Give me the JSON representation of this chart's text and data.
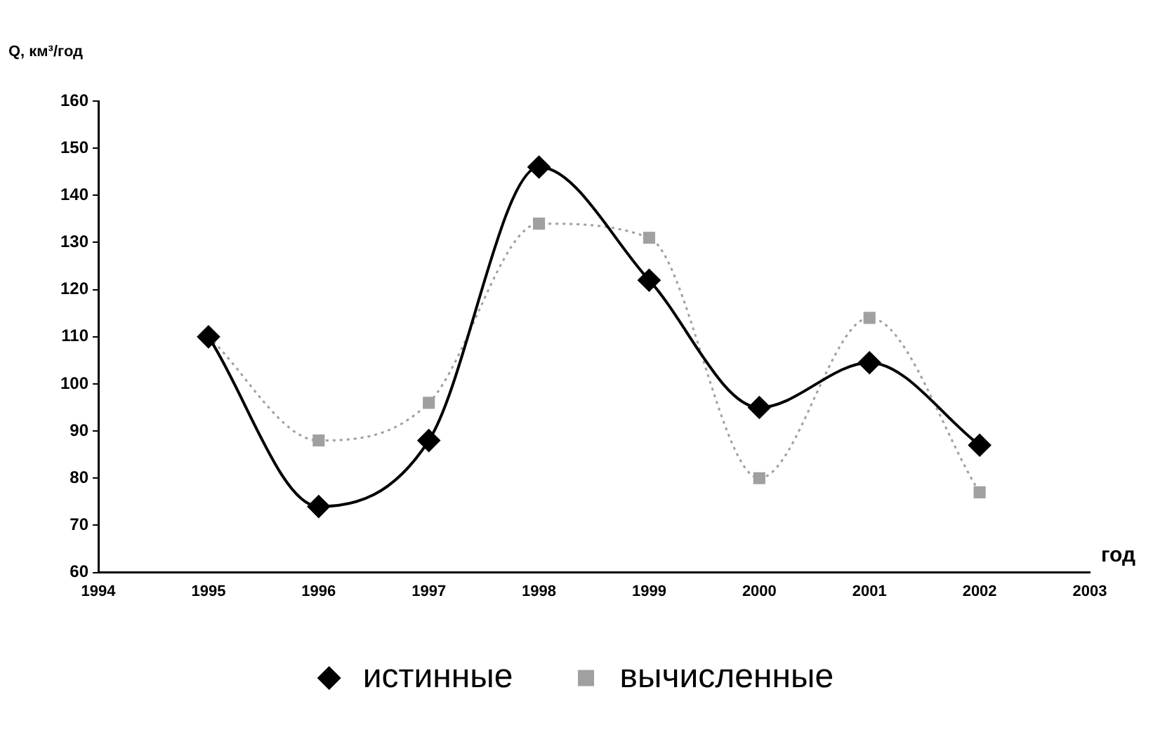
{
  "chart_data": {
    "type": "line",
    "ylabel": "Q, км³/год",
    "xlabel": "год",
    "x": [
      1995,
      1996,
      1997,
      1998,
      1999,
      2000,
      2001,
      2002
    ],
    "xlim": [
      1994,
      2003
    ],
    "xticks": [
      1994,
      1995,
      1996,
      1997,
      1998,
      1999,
      2000,
      2001,
      2002,
      2003
    ],
    "ylim": [
      60,
      160
    ],
    "yticks": [
      60,
      70,
      80,
      90,
      100,
      110,
      120,
      130,
      140,
      150,
      160
    ],
    "grid": false,
    "legend": "bottom",
    "series": [
      {
        "name": "истинные",
        "color": "#000000",
        "marker": "diamond",
        "line_style": "solid",
        "values": [
          110,
          74,
          88,
          146,
          122,
          95,
          104.5,
          87
        ]
      },
      {
        "name": "вычисленные",
        "color": "#a0a0a0",
        "marker": "square",
        "line_style": "dotted",
        "values": [
          110,
          88,
          96,
          134,
          131,
          80,
          114,
          77
        ]
      }
    ]
  }
}
